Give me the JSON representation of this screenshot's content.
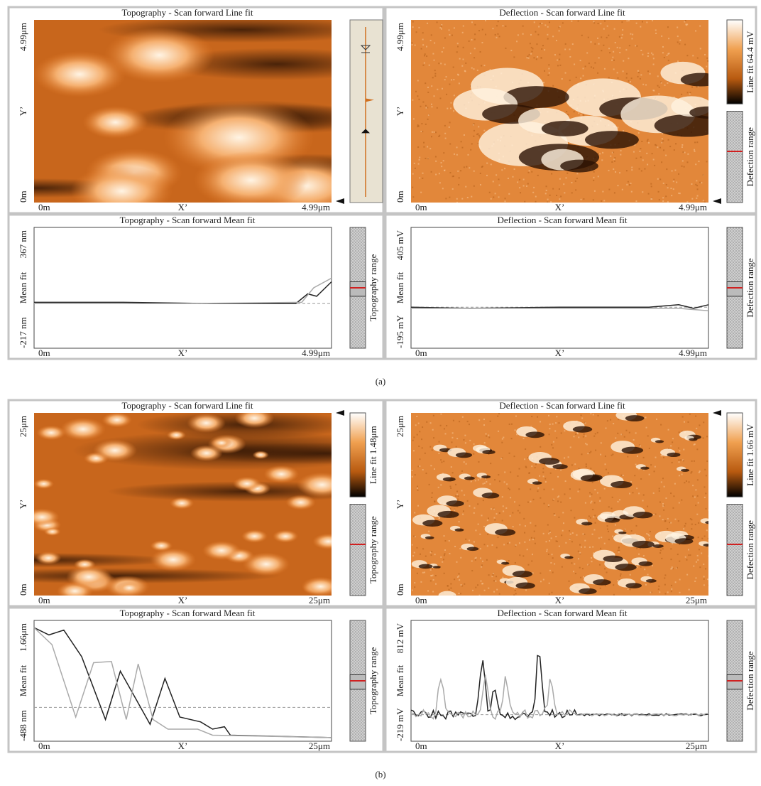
{
  "sections": [
    {
      "label": "(a)",
      "panels": [
        {
          "title": "Topography - Scan forward Line fit",
          "x_labels": [
            "0m",
            "X’",
            "4.99μm"
          ],
          "y_labels": [
            "4.99μm",
            "Y’",
            "0m"
          ]
        },
        {
          "title": "Deflection - Scan forward Line fit",
          "x_labels": [
            "0m",
            "X’",
            "4.99μm"
          ],
          "y_labels": [
            "4.99μm",
            "Y’",
            "0m"
          ],
          "colorbar_label": "Line fit 64.4 mV",
          "range_label": "Defection range"
        },
        {
          "title": "Topography - Scan forward Mean fit",
          "x_labels": [
            "0m",
            "X’",
            "4.99μm"
          ],
          "y_labels": [
            "367 nm",
            "Mean fit",
            "-217 nm"
          ],
          "range_label": "Topography range"
        },
        {
          "title": "Deflection - Scan forward Mean fit",
          "x_labels": [
            "0m",
            "X’",
            "4.99μm"
          ],
          "y_labels": [
            "405 mV",
            "Mean fit",
            "-195 mY"
          ],
          "range_label": "Defection range"
        }
      ]
    },
    {
      "label": "(b)",
      "panels": [
        {
          "title": "Topography - Scan forward Line fit",
          "x_labels": [
            "0m",
            "X’",
            "25μm"
          ],
          "y_labels": [
            "25μm",
            "Y’",
            "0m"
          ],
          "colorbar_label": "Line fit 1.48μm",
          "range_label": "Topography range"
        },
        {
          "title": "Deflection - Scan forward Line fit",
          "x_labels": [
            "0m",
            "X’",
            "25μm"
          ],
          "y_labels": [
            "25μm",
            "Y’",
            "0m"
          ],
          "colorbar_label": "Line fit 1.66 mV",
          "range_label": "Defection range"
        },
        {
          "title": "Topography - Scan forward Mean fit",
          "x_labels": [
            "0m",
            "X’",
            "25μm"
          ],
          "y_labels": [
            "1.66μm",
            "Mean fit",
            "-488 nm"
          ],
          "range_label": "Topography range"
        },
        {
          "title": "Deflection - Scan forward Mean fit",
          "x_labels": [
            "0m",
            "X’",
            "25μm"
          ],
          "y_labels": [
            "812 mV",
            "Mean fit",
            "-219 mV"
          ],
          "range_label": "Defection range"
        }
      ]
    }
  ]
}
